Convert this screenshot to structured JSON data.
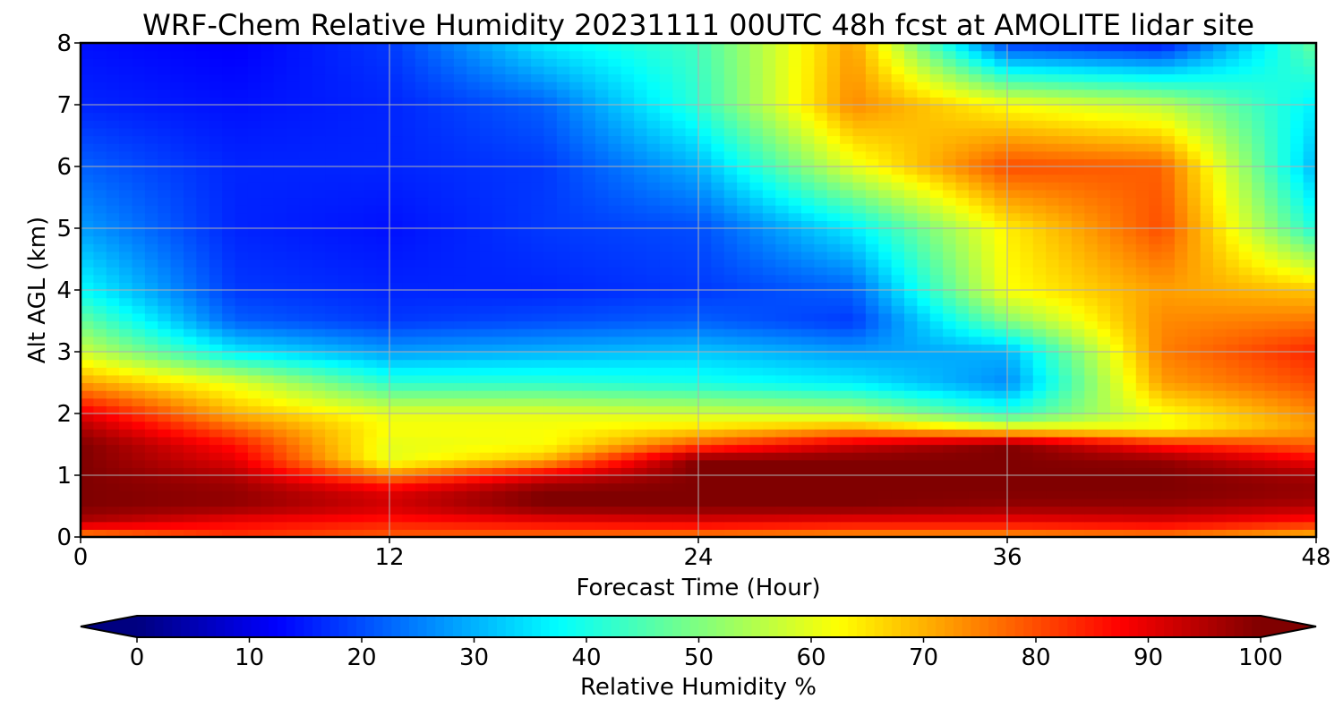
{
  "chart_data": {
    "type": "heatmap",
    "title": "WRF-Chem Relative Humidity 20231111 00UTC 48h fcst at AMOLITE lidar site",
    "xlabel": "Forecast Time (Hour)",
    "ylabel": "Alt AGL (km)",
    "xlim": [
      0,
      48
    ],
    "ylim": [
      0,
      8
    ],
    "xticks": [
      0,
      12,
      24,
      36,
      48
    ],
    "yticks": [
      0,
      1,
      2,
      3,
      4,
      5,
      6,
      7,
      8
    ],
    "grid": true,
    "colormap": "jet",
    "colorbar": {
      "label": "Relative Humidity %",
      "range": [
        0,
        100
      ],
      "ticks": [
        0,
        10,
        20,
        30,
        40,
        50,
        60,
        70,
        80,
        90,
        100
      ],
      "extend": "both",
      "placement": "bottom"
    },
    "x": [
      0,
      6,
      12,
      18,
      24,
      30,
      36,
      42,
      48
    ],
    "y": [
      0,
      0.25,
      0.5,
      0.75,
      1,
      1.25,
      1.5,
      1.75,
      2,
      2.5,
      3,
      3.5,
      4,
      5,
      6,
      7,
      8
    ],
    "z": [
      [
        72,
        82,
        78,
        76,
        74,
        72,
        72,
        74,
        68
      ],
      [
        95,
        88,
        85,
        88,
        90,
        88,
        88,
        90,
        85
      ],
      [
        100,
        98,
        92,
        100,
        100,
        100,
        98,
        98,
        95
      ],
      [
        100,
        98,
        90,
        100,
        100,
        100,
        100,
        100,
        98
      ],
      [
        100,
        95,
        75,
        90,
        100,
        100,
        100,
        100,
        96
      ],
      [
        100,
        90,
        60,
        70,
        100,
        100,
        100,
        98,
        88
      ],
      [
        100,
        86,
        60,
        62,
        80,
        92,
        100,
        85,
        78
      ],
      [
        96,
        78,
        62,
        62,
        66,
        72,
        64,
        62,
        72
      ],
      [
        90,
        70,
        60,
        60,
        58,
        56,
        42,
        62,
        74
      ],
      [
        72,
        60,
        42,
        42,
        40,
        36,
        26,
        72,
        80
      ],
      [
        58,
        36,
        28,
        30,
        32,
        28,
        30,
        75,
        84
      ],
      [
        48,
        22,
        18,
        20,
        22,
        18,
        50,
        74,
        76
      ],
      [
        38,
        18,
        16,
        16,
        18,
        22,
        62,
        72,
        68
      ],
      [
        28,
        16,
        14,
        18,
        20,
        36,
        64,
        80,
        40
      ],
      [
        22,
        16,
        16,
        18,
        30,
        60,
        80,
        78,
        30
      ],
      [
        16,
        14,
        16,
        22,
        42,
        74,
        62,
        56,
        36
      ],
      [
        14,
        12,
        18,
        36,
        44,
        72,
        18,
        14,
        48
      ]
    ]
  }
}
